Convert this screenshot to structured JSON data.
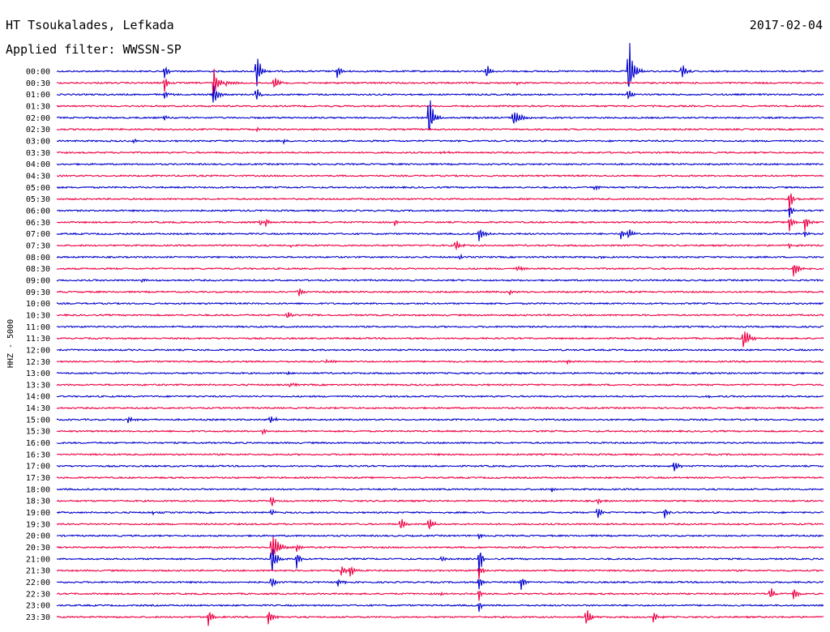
{
  "chart_data": {
    "type": "line",
    "title": "HT Tsoukalades, Lefkada",
    "date": "2017-02-04",
    "subtitle": "Applied filter: WWSSN-SP",
    "ylabel": "HHZ - 5000",
    "colors": [
      "#0000cc",
      "#ee0044"
    ],
    "grid": false,
    "rows": [
      {
        "label": "00:00",
        "events": [
          [
            0.14,
            14,
            1.2
          ],
          [
            0.26,
            36,
            1.4
          ],
          [
            0.365,
            14,
            1.4
          ],
          [
            0.56,
            13,
            1.4
          ],
          [
            0.745,
            60,
            1.6
          ],
          [
            0.815,
            14,
            1.4
          ]
        ]
      },
      {
        "label": "00:30",
        "events": [
          [
            0.14,
            16,
            1.0
          ],
          [
            0.203,
            32,
            1.6
          ],
          [
            0.22,
            6,
            2.0
          ],
          [
            0.283,
            14,
            1.4
          ],
          [
            0.6,
            3,
            1.0
          ]
        ]
      },
      {
        "label": "01:00",
        "events": [
          [
            0.14,
            6,
            1.5
          ],
          [
            0.203,
            20,
            1.5
          ],
          [
            0.26,
            14,
            1.0
          ],
          [
            0.745,
            10,
            1.3
          ]
        ]
      },
      {
        "label": "01:30",
        "events": []
      },
      {
        "label": "02:00",
        "events": [
          [
            0.14,
            4,
            1.0
          ],
          [
            0.485,
            40,
            1.4
          ],
          [
            0.595,
            16,
            2.4
          ]
        ]
      },
      {
        "label": "02:30",
        "events": [
          [
            0.26,
            3,
            1.0
          ]
        ]
      },
      {
        "label": "03:00",
        "events": [
          [
            0.1,
            3,
            1.0
          ],
          [
            0.295,
            4,
            1.0
          ]
        ]
      },
      {
        "label": "03:30",
        "events": [
          [
            0.5,
            2,
            3.0
          ]
        ]
      },
      {
        "label": "04:00",
        "events": []
      },
      {
        "label": "04:30",
        "events": []
      },
      {
        "label": "05:00",
        "events": [
          [
            0.7,
            3,
            2.5
          ]
        ]
      },
      {
        "label": "05:30",
        "events": [
          [
            0.955,
            22,
            1.0
          ]
        ]
      },
      {
        "label": "06:00",
        "events": [
          [
            0.23,
            2,
            1.0
          ],
          [
            0.955,
            14,
            1.0
          ]
        ]
      },
      {
        "label": "06:30",
        "events": [
          [
            0.265,
            6,
            1.2
          ],
          [
            0.272,
            8,
            1.2
          ],
          [
            0.44,
            8,
            1.2
          ],
          [
            0.955,
            16,
            1.2
          ],
          [
            0.975,
            16,
            1.4
          ]
        ]
      },
      {
        "label": "07:00",
        "events": [
          [
            0.55,
            12,
            2.0
          ],
          [
            0.735,
            8,
            1.5
          ],
          [
            0.745,
            9,
            1.5
          ],
          [
            0.975,
            6,
            1.2
          ]
        ]
      },
      {
        "label": "07:30",
        "events": [
          [
            0.305,
            3,
            1.0
          ],
          [
            0.52,
            9,
            1.5
          ],
          [
            0.955,
            5,
            1.0
          ]
        ]
      },
      {
        "label": "08:00",
        "events": [
          [
            0.525,
            4,
            1.0
          ],
          [
            0.71,
            3,
            1.0
          ]
        ]
      },
      {
        "label": "08:30",
        "events": [
          [
            0.6,
            3,
            3.0
          ],
          [
            0.96,
            14,
            2.0
          ]
        ]
      },
      {
        "label": "09:00",
        "events": [
          [
            0.11,
            3,
            1.0
          ]
        ]
      },
      {
        "label": "09:30",
        "events": [
          [
            0.315,
            8,
            1.5
          ],
          [
            0.59,
            6,
            1.5
          ]
        ]
      },
      {
        "label": "10:00",
        "events": []
      },
      {
        "label": "10:30",
        "events": [
          [
            0.3,
            8,
            1.5
          ]
        ]
      },
      {
        "label": "11:00",
        "events": []
      },
      {
        "label": "11:30",
        "events": [
          [
            0.895,
            18,
            2.0
          ]
        ]
      },
      {
        "label": "12:00",
        "events": []
      },
      {
        "label": "12:30",
        "events": [
          [
            0.35,
            3,
            3.0
          ],
          [
            0.665,
            5,
            1.0
          ]
        ]
      },
      {
        "label": "13:00",
        "events": [
          [
            0.3,
            2,
            1.0
          ]
        ]
      },
      {
        "label": "13:30",
        "events": [
          [
            0.303,
            5,
            1.5
          ]
        ]
      },
      {
        "label": "14:00",
        "events": [
          [
            0.85,
            3,
            1.0
          ]
        ]
      },
      {
        "label": "14:30",
        "events": []
      },
      {
        "label": "15:00",
        "events": [
          [
            0.092,
            6,
            2.0
          ],
          [
            0.278,
            6,
            2.0
          ]
        ]
      },
      {
        "label": "15:30",
        "events": [
          [
            0.268,
            4,
            2.0
          ]
        ]
      },
      {
        "label": "16:00",
        "events": [
          [
            0.19,
            3,
            1.0
          ]
        ]
      },
      {
        "label": "16:30",
        "events": []
      },
      {
        "label": "17:00",
        "events": [
          [
            0.805,
            10,
            1.5
          ]
        ]
      },
      {
        "label": "17:30",
        "events": []
      },
      {
        "label": "18:00",
        "events": [
          [
            0.645,
            4,
            1.0
          ]
        ]
      },
      {
        "label": "18:30",
        "events": [
          [
            0.28,
            12,
            1.0
          ],
          [
            0.705,
            8,
            1.0
          ]
        ]
      },
      {
        "label": "19:00",
        "events": [
          [
            0.28,
            6,
            1.0
          ],
          [
            0.705,
            12,
            1.2
          ],
          [
            0.792,
            12,
            1.0
          ],
          [
            0.125,
            3,
            1.0
          ]
        ]
      },
      {
        "label": "19:30",
        "events": [
          [
            0.448,
            12,
            1.5
          ],
          [
            0.485,
            12,
            1.5
          ]
        ]
      },
      {
        "label": "20:00",
        "events": [
          [
            0.55,
            6,
            1.0
          ]
        ]
      },
      {
        "label": "20:30",
        "events": [
          [
            0.28,
            22,
            2.5
          ],
          [
            0.312,
            10,
            1.0
          ]
        ]
      },
      {
        "label": "21:00",
        "events": [
          [
            0.28,
            30,
            1.5
          ],
          [
            0.312,
            20,
            1.0
          ],
          [
            0.502,
            6,
            1.0
          ],
          [
            0.55,
            36,
            1.0
          ]
        ]
      },
      {
        "label": "21:30",
        "events": [
          [
            0.37,
            12,
            1.5
          ],
          [
            0.382,
            12,
            1.5
          ],
          [
            0.55,
            14,
            1.0
          ]
        ]
      },
      {
        "label": "22:00",
        "events": [
          [
            0.366,
            8,
            1.5
          ],
          [
            0.605,
            12,
            1.5
          ],
          [
            0.55,
            14,
            1.0
          ],
          [
            0.28,
            14,
            1.0
          ]
        ]
      },
      {
        "label": "22:30",
        "events": [
          [
            0.5,
            3,
            3.0
          ],
          [
            0.93,
            10,
            1.5
          ],
          [
            0.96,
            12,
            1.5
          ],
          [
            0.55,
            12,
            1.0
          ]
        ]
      },
      {
        "label": "23:00",
        "events": [
          [
            0.55,
            10,
            1.0
          ]
        ]
      },
      {
        "label": "23:30",
        "events": [
          [
            0.197,
            16,
            1.5
          ],
          [
            0.275,
            14,
            1.5
          ],
          [
            0.69,
            20,
            1.5
          ],
          [
            0.777,
            14,
            1.5
          ]
        ]
      }
    ]
  }
}
